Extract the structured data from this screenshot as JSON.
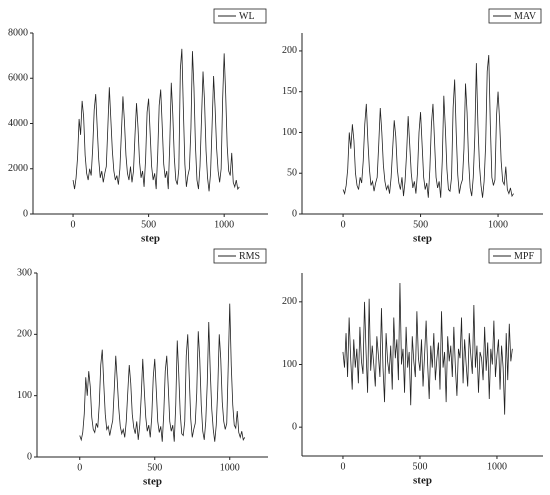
{
  "chart_data": [
    {
      "type": "line",
      "xlabel": "step",
      "legend": "upper right",
      "xlim": [
        -265,
        1290
      ],
      "ylim": [
        0,
        8000
      ],
      "xticks": [
        0,
        500,
        1000
      ],
      "yticks": [
        0,
        2000,
        4000,
        6000,
        8000
      ],
      "x": [
        0,
        10,
        20,
        30,
        40,
        50,
        60,
        70,
        80,
        90,
        100,
        110,
        120,
        130,
        140,
        150,
        160,
        170,
        180,
        190,
        200,
        210,
        220,
        230,
        240,
        250,
        260,
        270,
        280,
        290,
        300,
        310,
        320,
        330,
        340,
        350,
        360,
        370,
        380,
        390,
        400,
        410,
        420,
        430,
        440,
        450,
        460,
        470,
        480,
        490,
        500,
        510,
        520,
        530,
        540,
        550,
        560,
        570,
        580,
        590,
        600,
        610,
        620,
        630,
        640,
        650,
        660,
        670,
        680,
        690,
        700,
        710,
        720,
        730,
        740,
        750,
        760,
        770,
        780,
        790,
        800,
        810,
        820,
        830,
        840,
        850,
        860,
        870,
        880,
        890,
        900,
        910,
        920,
        930,
        940,
        950,
        960,
        970,
        980,
        990,
        1000,
        1010,
        1020,
        1030,
        1040,
        1050,
        1060,
        1070,
        1080,
        1090,
        1100
      ],
      "series": [
        {
          "name": "WL",
          "color": "#222222",
          "values": [
            1500,
            1100,
            1600,
            2500,
            4200,
            3500,
            5000,
            4300,
            2600,
            1800,
            1500,
            2000,
            1700,
            2900,
            4600,
            5300,
            3800,
            2400,
            1600,
            1900,
            1400,
            1800,
            2100,
            3800,
            5600,
            4200,
            2800,
            1900,
            1500,
            1700,
            1300,
            2000,
            3600,
            5200,
            4100,
            2600,
            1800,
            1500,
            2100,
            1400,
            1900,
            3500,
            4900,
            3800,
            2300,
            1600,
            1900,
            1200,
            2400,
            4500,
            5100,
            3600,
            2100,
            1500,
            1800,
            1100,
            2600,
            4800,
            5500,
            3900,
            2200,
            1600,
            1900,
            1100,
            3100,
            5800,
            4400,
            2500,
            1500,
            1300,
            2000,
            6400,
            7300,
            4600,
            2200,
            1200,
            1700,
            2000,
            3800,
            7200,
            5600,
            3000,
            1500,
            1100,
            2100,
            4200,
            6300,
            5000,
            2800,
            1600,
            1000,
            1800,
            3900,
            6100,
            4700,
            2900,
            1900,
            1400,
            2000,
            5100,
            7100,
            5300,
            3000,
            1900,
            1700,
            2700,
            1400,
            1200,
            1500,
            1100,
            1200
          ]
        }
      ]
    },
    {
      "type": "line",
      "xlabel": "step",
      "legend": "upper right",
      "xlim": [
        -265,
        1290
      ],
      "ylim": [
        0,
        222
      ],
      "xticks": [
        0,
        500,
        1000
      ],
      "yticks": [
        0,
        50,
        100,
        150,
        200
      ],
      "x": [
        0,
        10,
        20,
        30,
        40,
        50,
        60,
        70,
        80,
        90,
        100,
        110,
        120,
        130,
        140,
        150,
        160,
        170,
        180,
        190,
        200,
        210,
        220,
        230,
        240,
        250,
        260,
        270,
        280,
        290,
        300,
        310,
        320,
        330,
        340,
        350,
        360,
        370,
        380,
        390,
        400,
        410,
        420,
        430,
        440,
        450,
        460,
        470,
        480,
        490,
        500,
        510,
        520,
        530,
        540,
        550,
        560,
        570,
        580,
        590,
        600,
        610,
        620,
        630,
        640,
        650,
        660,
        670,
        680,
        690,
        700,
        710,
        720,
        730,
        740,
        750,
        760,
        770,
        780,
        790,
        800,
        810,
        820,
        830,
        840,
        850,
        860,
        870,
        880,
        890,
        900,
        910,
        920,
        930,
        940,
        950,
        960,
        970,
        980,
        990,
        1000,
        1010,
        1020,
        1030,
        1040,
        1050,
        1060,
        1070,
        1080,
        1090,
        1100
      ],
      "series": [
        {
          "name": "MAV",
          "color": "#222222",
          "values": [
            30,
            25,
            35,
            55,
            100,
            80,
            110,
            90,
            50,
            35,
            30,
            45,
            38,
            65,
            110,
            135,
            90,
            55,
            35,
            40,
            28,
            38,
            45,
            85,
            130,
            100,
            60,
            40,
            30,
            35,
            25,
            45,
            80,
            115,
            95,
            55,
            38,
            30,
            45,
            22,
            40,
            75,
            120,
            85,
            50,
            32,
            40,
            25,
            50,
            100,
            125,
            85,
            45,
            30,
            38,
            20,
            55,
            110,
            135,
            90,
            45,
            32,
            40,
            20,
            65,
            145,
            105,
            55,
            30,
            28,
            45,
            130,
            165,
            100,
            48,
            25,
            36,
            42,
            80,
            160,
            125,
            65,
            32,
            22,
            45,
            95,
            185,
            110,
            60,
            35,
            20,
            40,
            85,
            175,
            195,
            110,
            45,
            35,
            42,
            120,
            150,
            115,
            65,
            40,
            36,
            58,
            30,
            25,
            32,
            22,
            25
          ]
        }
      ]
    },
    {
      "type": "line",
      "xlabel": "step",
      "legend": "upper right",
      "xlim": [
        -285,
        1255
      ],
      "ylim": [
        0,
        300
      ],
      "xticks": [
        0,
        500,
        1000
      ],
      "yticks": [
        0,
        100,
        200,
        300
      ],
      "x": [
        0,
        10,
        20,
        30,
        40,
        50,
        60,
        70,
        80,
        90,
        100,
        110,
        120,
        130,
        140,
        150,
        160,
        170,
        180,
        190,
        200,
        210,
        220,
        230,
        240,
        250,
        260,
        270,
        280,
        290,
        300,
        310,
        320,
        330,
        340,
        350,
        360,
        370,
        380,
        390,
        400,
        410,
        420,
        430,
        440,
        450,
        460,
        470,
        480,
        490,
        500,
        510,
        520,
        530,
        540,
        550,
        560,
        570,
        580,
        590,
        600,
        610,
        620,
        630,
        640,
        650,
        660,
        670,
        680,
        690,
        700,
        710,
        720,
        730,
        740,
        750,
        760,
        770,
        780,
        790,
        800,
        810,
        820,
        830,
        840,
        850,
        860,
        870,
        880,
        890,
        900,
        910,
        920,
        930,
        940,
        950,
        960,
        970,
        980,
        990,
        1000,
        1010,
        1020,
        1030,
        1040,
        1050,
        1060,
        1070,
        1080,
        1090,
        1100
      ],
      "series": [
        {
          "name": "RMS",
          "color": "#222222",
          "values": [
            35,
            28,
            40,
            70,
            130,
            100,
            140,
            115,
            65,
            45,
            40,
            55,
            48,
            85,
            150,
            175,
            120,
            70,
            45,
            50,
            35,
            48,
            60,
            110,
            165,
            125,
            80,
            50,
            38,
            45,
            32,
            58,
            105,
            150,
            120,
            70,
            48,
            38,
            58,
            28,
            52,
            100,
            160,
            110,
            65,
            42,
            52,
            32,
            65,
            130,
            160,
            110,
            58,
            40,
            50,
            25,
            70,
            140,
            165,
            115,
            58,
            42,
            52,
            25,
            85,
            190,
            135,
            70,
            38,
            35,
            58,
            165,
            200,
            130,
            62,
            32,
            45,
            55,
            105,
            205,
            160,
            85,
            42,
            28,
            58,
            120,
            220,
            140,
            78,
            45,
            25,
            52,
            110,
            200,
            160,
            90,
            58,
            45,
            55,
            150,
            250,
            150,
            85,
            52,
            47,
            75,
            40,
            32,
            42,
            28,
            32
          ]
        }
      ]
    },
    {
      "type": "line",
      "xlabel": "step",
      "legend": "upper right",
      "xlim": [
        -266,
        1299
      ],
      "ylim": [
        -46,
        246
      ],
      "xticks": [
        0,
        500,
        1000
      ],
      "yticks": [
        0,
        100,
        200
      ],
      "x": [
        0,
        10,
        20,
        30,
        40,
        50,
        60,
        70,
        80,
        90,
        100,
        110,
        120,
        130,
        140,
        150,
        160,
        170,
        180,
        190,
        200,
        210,
        220,
        230,
        240,
        250,
        260,
        270,
        280,
        290,
        300,
        310,
        320,
        330,
        340,
        350,
        360,
        370,
        380,
        390,
        400,
        410,
        420,
        430,
        440,
        450,
        460,
        470,
        480,
        490,
        500,
        510,
        520,
        530,
        540,
        550,
        560,
        570,
        580,
        590,
        600,
        610,
        620,
        630,
        640,
        650,
        660,
        670,
        680,
        690,
        700,
        710,
        720,
        730,
        740,
        750,
        760,
        770,
        780,
        790,
        800,
        810,
        820,
        830,
        840,
        850,
        860,
        870,
        880,
        890,
        900,
        910,
        920,
        930,
        940,
        950,
        960,
        970,
        980,
        990,
        1000,
        1010,
        1020,
        1030,
        1040,
        1050,
        1060,
        1070,
        1080,
        1090,
        1100
      ],
      "series": [
        {
          "name": "MPF",
          "color": "#222222",
          "values": [
            120,
            95,
            150,
            80,
            175,
            110,
            60,
            140,
            95,
            125,
            70,
            160,
            105,
            85,
            200,
            120,
            55,
            205,
            90,
            130,
            100,
            65,
            145,
            115,
            80,
            190,
            95,
            40,
            150,
            105,
            85,
            130,
            60,
            175,
            110,
            140,
            75,
            230,
            100,
            125,
            55,
            160,
            95,
            120,
            35,
            145,
            105,
            80,
            185,
            110,
            90,
            140,
            65,
            115,
            170,
            100,
            45,
            130,
            95,
            150,
            75,
            110,
            135,
            60,
            185,
            95,
            120,
            40,
            145,
            105,
            130,
            80,
            160,
            95,
            50,
            125,
            110,
            175,
            70,
            140,
            100,
            65,
            150,
            115,
            85,
            195,
            95,
            130,
            55,
            120,
            110,
            75,
            160,
            90,
            135,
            45,
            125,
            100,
            170,
            80,
            115,
            140,
            60,
            130,
            95,
            20,
            150,
            75,
            165,
            105,
            125
          ]
        }
      ]
    }
  ]
}
